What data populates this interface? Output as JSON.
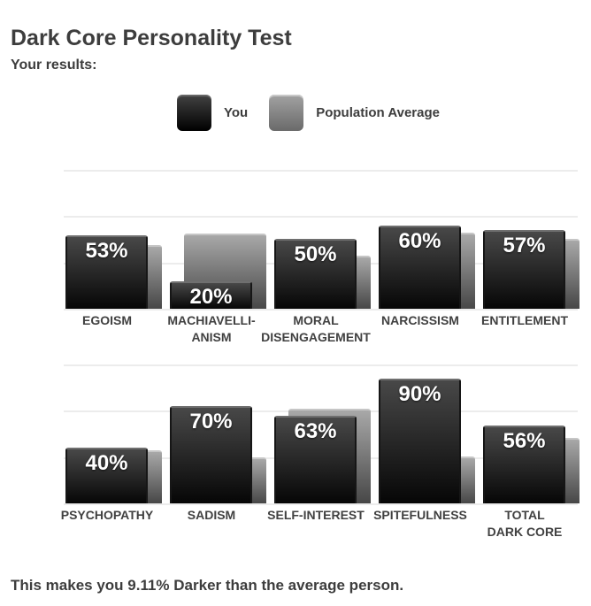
{
  "page": {
    "title": "Dark Core Personality Test",
    "results_heading": "Your results:",
    "footer": "This makes you 9.11% Darker than the average person."
  },
  "legend": {
    "you": "You",
    "population": "Population Average"
  },
  "chart_data": {
    "type": "bar",
    "title": "Dark Core Personality Test",
    "ylim": [
      0,
      100
    ],
    "grid": true,
    "gridlines_at_pct": [
      0,
      33.3,
      66.7,
      100
    ],
    "legend_position": "top-center",
    "series_names": [
      "You",
      "Population Average"
    ],
    "rows": [
      {
        "categories": [
          [
            "EGOISM"
          ],
          [
            "MACHIAVELLI-",
            "ANISM"
          ],
          [
            "MORAL",
            "DISENGAGEMENT"
          ],
          [
            "NARCISSISM"
          ],
          [
            "ENTITLEMENT"
          ]
        ],
        "you_values": [
          53,
          20,
          50,
          60,
          57
        ],
        "you_labels": [
          "53%",
          "20%",
          "50%",
          "60%",
          "57%"
        ],
        "population_average_values": [
          46,
          54,
          38,
          55,
          50
        ]
      },
      {
        "categories": [
          [
            "PSYCHOPATHY"
          ],
          [
            "SADISM"
          ],
          [
            "SELF-INTEREST"
          ],
          [
            "SPITEFULNESS"
          ],
          [
            "TOTAL",
            "DARK CORE"
          ]
        ],
        "you_values": [
          40,
          70,
          63,
          90,
          56
        ],
        "you_labels": [
          "40%",
          "70%",
          "63%",
          "90%",
          "56%"
        ],
        "population_average_values": [
          38,
          33,
          68,
          34,
          47
        ]
      }
    ],
    "colors": {
      "you_bar_top": "#484848",
      "you_bar_bottom": "#060606",
      "population_bar_top": "#a8a8a8",
      "population_bar_bottom": "#474747",
      "value_label": "#ffffff",
      "category_label": "#414141",
      "gridline": "#ececec",
      "heading_text": "#3d3d3d"
    }
  }
}
